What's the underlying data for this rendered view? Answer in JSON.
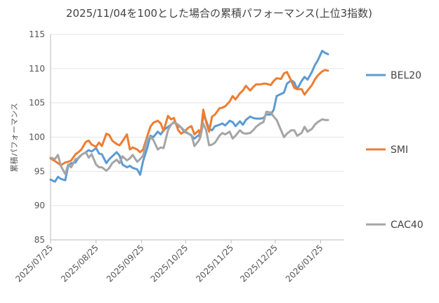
{
  "chart_data": {
    "type": "line",
    "title": "2025/11/04を100とした場合の累積パフォーマンス(上位3指数)",
    "ylabel": "累積パフォーマンス",
    "xlabel": "",
    "ylim": [
      85,
      115
    ],
    "yticks": [
      85,
      90,
      95,
      100,
      105,
      110,
      115
    ],
    "xlim": [
      "2025-07-25",
      "2026-02-10"
    ],
    "xticks": [
      {
        "date": "2025-07-25",
        "label": "2025/07/25"
      },
      {
        "date": "2025-08-25",
        "label": "2025/08/25"
      },
      {
        "date": "2025-09-25",
        "label": "2025/09/25"
      },
      {
        "date": "2025-10-25",
        "label": "2025/10/25"
      },
      {
        "date": "2025-11-25",
        "label": "2025/11/25"
      },
      {
        "date": "2025-12-25",
        "label": "2025/12/25"
      },
      {
        "date": "2026-01-25",
        "label": "2026/01/25"
      }
    ],
    "grid": "horizontal",
    "legend_position": "right",
    "series": [
      {
        "name": "BEL20",
        "color": "#5b9bd5",
        "points": [
          [
            "2025-07-25",
            93.8
          ],
          [
            "2025-07-28",
            93.5
          ],
          [
            "2025-07-30",
            94.2
          ],
          [
            "2025-08-01",
            93.9
          ],
          [
            "2025-08-04",
            93.7
          ],
          [
            "2025-08-06",
            95.8
          ],
          [
            "2025-08-08",
            96.2
          ],
          [
            "2025-08-11",
            96.3
          ],
          [
            "2025-08-13",
            97.0
          ],
          [
            "2025-08-15",
            97.4
          ],
          [
            "2025-08-18",
            97.8
          ],
          [
            "2025-08-20",
            98.1
          ],
          [
            "2025-08-22",
            97.9
          ],
          [
            "2025-08-25",
            98.4
          ],
          [
            "2025-08-27",
            97.6
          ],
          [
            "2025-08-29",
            97.5
          ],
          [
            "2025-09-01",
            96.2
          ],
          [
            "2025-09-03",
            96.8
          ],
          [
            "2025-09-05",
            97.2
          ],
          [
            "2025-09-08",
            97.8
          ],
          [
            "2025-09-10",
            97.3
          ],
          [
            "2025-09-12",
            96.0
          ],
          [
            "2025-09-15",
            95.6
          ],
          [
            "2025-09-17",
            95.8
          ],
          [
            "2025-09-19",
            95.5
          ],
          [
            "2025-09-22",
            95.3
          ],
          [
            "2025-09-24",
            94.5
          ],
          [
            "2025-09-26",
            96.5
          ],
          [
            "2025-09-29",
            98.5
          ],
          [
            "2025-10-01",
            100.2
          ],
          [
            "2025-10-03",
            100.0
          ],
          [
            "2025-10-06",
            100.8
          ],
          [
            "2025-10-08",
            100.4
          ],
          [
            "2025-10-10",
            101.0
          ],
          [
            "2025-10-13",
            101.5
          ],
          [
            "2025-10-15",
            101.8
          ],
          [
            "2025-10-17",
            102.2
          ],
          [
            "2025-10-20",
            101.6
          ],
          [
            "2025-10-22",
            101.4
          ],
          [
            "2025-10-24",
            100.8
          ],
          [
            "2025-10-27",
            100.5
          ],
          [
            "2025-10-29",
            100.2
          ],
          [
            "2025-10-31",
            99.8
          ],
          [
            "2025-11-03",
            100.3
          ],
          [
            "2025-11-04",
            100.0
          ],
          [
            "2025-11-06",
            103.2
          ],
          [
            "2025-11-08",
            102.4
          ],
          [
            "2025-11-10",
            101.2
          ],
          [
            "2025-11-12",
            101.0
          ],
          [
            "2025-11-14",
            101.6
          ],
          [
            "2025-11-17",
            101.8
          ],
          [
            "2025-11-19",
            102.0
          ],
          [
            "2025-11-21",
            101.7
          ],
          [
            "2025-11-24",
            102.4
          ],
          [
            "2025-11-26",
            102.2
          ],
          [
            "2025-11-28",
            101.6
          ],
          [
            "2025-12-01",
            102.3
          ],
          [
            "2025-12-03",
            101.8
          ],
          [
            "2025-12-05",
            102.5
          ],
          [
            "2025-12-08",
            103.0
          ],
          [
            "2025-12-10",
            102.8
          ],
          [
            "2025-12-12",
            102.7
          ],
          [
            "2025-12-15",
            102.7
          ],
          [
            "2025-12-17",
            102.8
          ],
          [
            "2025-12-19",
            103.3
          ],
          [
            "2025-12-22",
            103.3
          ],
          [
            "2025-12-24",
            104.0
          ],
          [
            "2025-12-26",
            106.0
          ],
          [
            "2025-12-29",
            106.3
          ],
          [
            "2025-12-31",
            106.5
          ],
          [
            "2026-01-02",
            107.8
          ],
          [
            "2026-01-05",
            108.3
          ],
          [
            "2026-01-07",
            108.0
          ],
          [
            "2026-01-09",
            107.0
          ],
          [
            "2026-01-12",
            108.2
          ],
          [
            "2026-01-14",
            108.8
          ],
          [
            "2026-01-16",
            108.4
          ],
          [
            "2026-01-19",
            109.5
          ],
          [
            "2026-01-21",
            110.5
          ],
          [
            "2026-01-23",
            111.2
          ],
          [
            "2026-01-26",
            112.6
          ],
          [
            "2026-01-28",
            112.3
          ],
          [
            "2026-01-30",
            112.1
          ]
        ]
      },
      {
        "name": "SMI",
        "color": "#ed7d31",
        "points": [
          [
            "2025-07-25",
            96.9
          ],
          [
            "2025-07-28",
            96.5
          ],
          [
            "2025-07-30",
            96.2
          ],
          [
            "2025-08-01",
            95.9
          ],
          [
            "2025-08-04",
            96.3
          ],
          [
            "2025-08-06",
            96.4
          ],
          [
            "2025-08-08",
            96.6
          ],
          [
            "2025-08-11",
            97.5
          ],
          [
            "2025-08-13",
            97.8
          ],
          [
            "2025-08-15",
            98.2
          ],
          [
            "2025-08-18",
            99.3
          ],
          [
            "2025-08-20",
            99.5
          ],
          [
            "2025-08-22",
            98.9
          ],
          [
            "2025-08-25",
            98.6
          ],
          [
            "2025-08-27",
            99.2
          ],
          [
            "2025-08-29",
            98.7
          ],
          [
            "2025-09-01",
            100.5
          ],
          [
            "2025-09-03",
            100.3
          ],
          [
            "2025-09-05",
            99.5
          ],
          [
            "2025-09-08",
            99.0
          ],
          [
            "2025-09-10",
            98.8
          ],
          [
            "2025-09-12",
            99.4
          ],
          [
            "2025-09-15",
            100.4
          ],
          [
            "2025-09-17",
            98.2
          ],
          [
            "2025-09-19",
            98.5
          ],
          [
            "2025-09-22",
            98.2
          ],
          [
            "2025-09-24",
            97.8
          ],
          [
            "2025-09-26",
            98.2
          ],
          [
            "2025-09-29",
            100.2
          ],
          [
            "2025-10-01",
            101.5
          ],
          [
            "2025-10-03",
            102.1
          ],
          [
            "2025-10-06",
            102.4
          ],
          [
            "2025-10-08",
            102.0
          ],
          [
            "2025-10-10",
            100.9
          ],
          [
            "2025-10-13",
            103.1
          ],
          [
            "2025-10-15",
            102.6
          ],
          [
            "2025-10-17",
            102.8
          ],
          [
            "2025-10-20",
            101.0
          ],
          [
            "2025-10-22",
            100.5
          ],
          [
            "2025-10-24",
            100.8
          ],
          [
            "2025-10-27",
            101.4
          ],
          [
            "2025-10-29",
            101.6
          ],
          [
            "2025-10-31",
            100.4
          ],
          [
            "2025-11-03",
            101.0
          ],
          [
            "2025-11-04",
            100.0
          ],
          [
            "2025-11-06",
            104.0
          ],
          [
            "2025-11-08",
            102.2
          ],
          [
            "2025-11-10",
            100.8
          ],
          [
            "2025-11-12",
            103.0
          ],
          [
            "2025-11-14",
            103.3
          ],
          [
            "2025-11-17",
            104.2
          ],
          [
            "2025-11-19",
            104.3
          ],
          [
            "2025-11-21",
            104.5
          ],
          [
            "2025-11-24",
            105.2
          ],
          [
            "2025-11-26",
            106.0
          ],
          [
            "2025-11-28",
            105.5
          ],
          [
            "2025-12-01",
            106.4
          ],
          [
            "2025-12-03",
            106.8
          ],
          [
            "2025-12-05",
            107.5
          ],
          [
            "2025-12-08",
            106.8
          ],
          [
            "2025-12-10",
            107.3
          ],
          [
            "2025-12-12",
            107.7
          ],
          [
            "2025-12-15",
            107.7
          ],
          [
            "2025-12-17",
            107.8
          ],
          [
            "2025-12-19",
            107.8
          ],
          [
            "2025-12-22",
            107.6
          ],
          [
            "2025-12-24",
            108.2
          ],
          [
            "2025-12-26",
            108.6
          ],
          [
            "2025-12-29",
            108.5
          ],
          [
            "2025-12-31",
            109.3
          ],
          [
            "2026-01-02",
            109.5
          ],
          [
            "2026-01-05",
            108.2
          ],
          [
            "2026-01-07",
            107.2
          ],
          [
            "2026-01-09",
            107.0
          ],
          [
            "2026-01-12",
            107.0
          ],
          [
            "2026-01-14",
            106.2
          ],
          [
            "2026-01-16",
            106.8
          ],
          [
            "2026-01-19",
            107.6
          ],
          [
            "2026-01-21",
            108.4
          ],
          [
            "2026-01-23",
            109.0
          ],
          [
            "2026-01-26",
            109.6
          ],
          [
            "2026-01-28",
            109.8
          ],
          [
            "2026-01-30",
            109.7
          ]
        ]
      },
      {
        "name": "CAC40",
        "color": "#a5a5a5",
        "points": [
          [
            "2025-07-25",
            97.0
          ],
          [
            "2025-07-28",
            96.8
          ],
          [
            "2025-07-30",
            97.4
          ],
          [
            "2025-08-01",
            95.8
          ],
          [
            "2025-08-04",
            94.6
          ],
          [
            "2025-08-06",
            96.0
          ],
          [
            "2025-08-08",
            95.6
          ],
          [
            "2025-08-11",
            96.8
          ],
          [
            "2025-08-13",
            96.9
          ],
          [
            "2025-08-15",
            97.4
          ],
          [
            "2025-08-18",
            97.8
          ],
          [
            "2025-08-20",
            97.0
          ],
          [
            "2025-08-22",
            97.5
          ],
          [
            "2025-08-25",
            96.0
          ],
          [
            "2025-08-27",
            95.6
          ],
          [
            "2025-08-29",
            95.6
          ],
          [
            "2025-09-01",
            95.1
          ],
          [
            "2025-09-03",
            95.5
          ],
          [
            "2025-09-05",
            96.2
          ],
          [
            "2025-09-08",
            96.7
          ],
          [
            "2025-09-10",
            96.2
          ],
          [
            "2025-09-12",
            97.2
          ],
          [
            "2025-09-15",
            96.6
          ],
          [
            "2025-09-17",
            96.9
          ],
          [
            "2025-09-19",
            97.4
          ],
          [
            "2025-09-22",
            96.4
          ],
          [
            "2025-09-24",
            96.8
          ],
          [
            "2025-09-26",
            97.3
          ],
          [
            "2025-09-29",
            99.8
          ],
          [
            "2025-10-01",
            100.0
          ],
          [
            "2025-10-03",
            99.6
          ],
          [
            "2025-10-06",
            98.2
          ],
          [
            "2025-10-08",
            98.5
          ],
          [
            "2025-10-10",
            98.4
          ],
          [
            "2025-10-13",
            101.0
          ],
          [
            "2025-10-15",
            101.8
          ],
          [
            "2025-10-17",
            102.2
          ],
          [
            "2025-10-20",
            101.8
          ],
          [
            "2025-10-22",
            101.4
          ],
          [
            "2025-10-24",
            101.0
          ],
          [
            "2025-10-27",
            100.5
          ],
          [
            "2025-10-29",
            100.3
          ],
          [
            "2025-10-31",
            98.7
          ],
          [
            "2025-11-03",
            99.5
          ],
          [
            "2025-11-04",
            100.0
          ],
          [
            "2025-11-06",
            102.0
          ],
          [
            "2025-11-08",
            101.0
          ],
          [
            "2025-11-10",
            98.8
          ],
          [
            "2025-11-12",
            98.9
          ],
          [
            "2025-11-14",
            99.2
          ],
          [
            "2025-11-17",
            100.2
          ],
          [
            "2025-11-19",
            100.6
          ],
          [
            "2025-11-21",
            100.4
          ],
          [
            "2025-11-24",
            100.8
          ],
          [
            "2025-11-26",
            99.8
          ],
          [
            "2025-11-28",
            100.2
          ],
          [
            "2025-12-01",
            101.0
          ],
          [
            "2025-12-03",
            100.6
          ],
          [
            "2025-12-05",
            100.5
          ],
          [
            "2025-12-08",
            100.6
          ],
          [
            "2025-12-10",
            101.0
          ],
          [
            "2025-12-12",
            101.5
          ],
          [
            "2025-12-15",
            102.0
          ],
          [
            "2025-12-17",
            102.2
          ],
          [
            "2025-12-19",
            103.7
          ],
          [
            "2025-12-22",
            103.6
          ],
          [
            "2025-12-24",
            103.0
          ],
          [
            "2025-12-26",
            102.5
          ],
          [
            "2025-12-29",
            101.0
          ],
          [
            "2025-12-31",
            100.0
          ],
          [
            "2026-01-02",
            100.5
          ],
          [
            "2026-01-05",
            101.0
          ],
          [
            "2026-01-07",
            101.0
          ],
          [
            "2026-01-09",
            100.2
          ],
          [
            "2026-01-12",
            100.6
          ],
          [
            "2026-01-14",
            101.5
          ],
          [
            "2026-01-16",
            100.8
          ],
          [
            "2026-01-19",
            101.2
          ],
          [
            "2026-01-21",
            101.8
          ],
          [
            "2026-01-23",
            102.2
          ],
          [
            "2026-01-26",
            102.6
          ],
          [
            "2026-01-28",
            102.5
          ],
          [
            "2026-01-30",
            102.5
          ]
        ]
      }
    ]
  }
}
